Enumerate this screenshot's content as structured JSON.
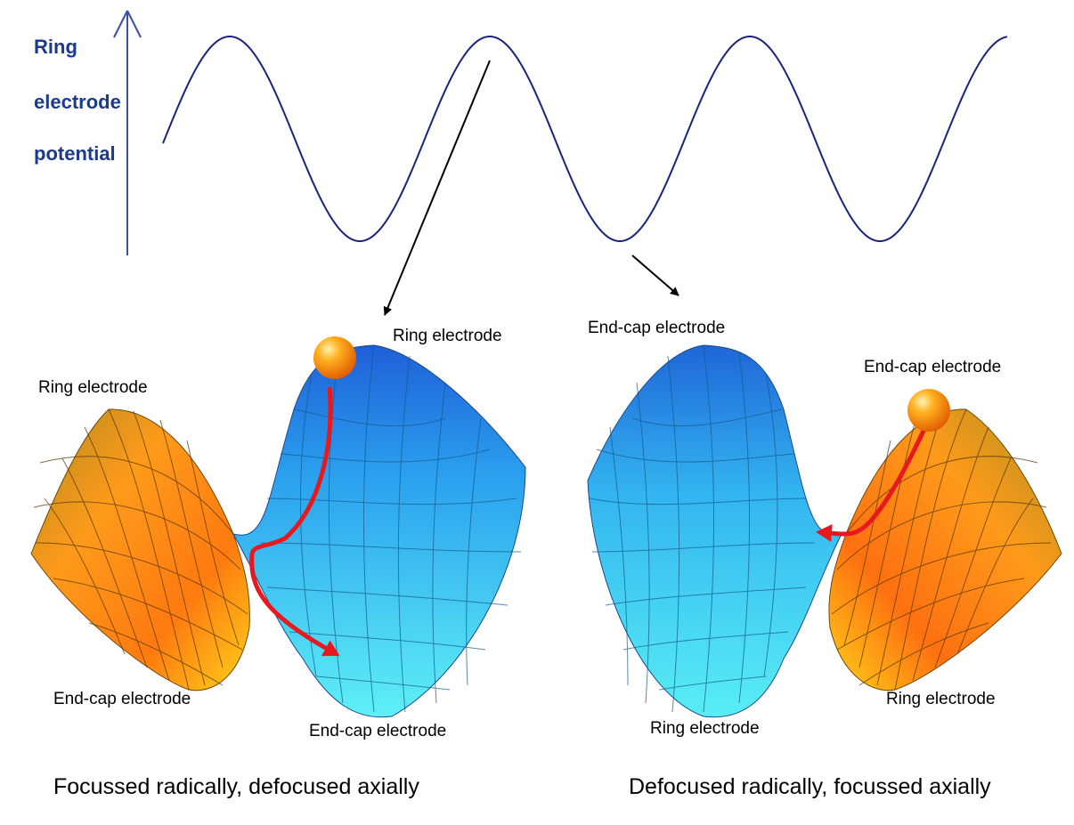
{
  "axis": {
    "label_line1": "Ring",
    "label_line2": "electrode",
    "label_line3": "potential"
  },
  "left_panel": {
    "top_right_label": "Ring electrode",
    "top_left_label": "Ring electrode",
    "bottom_left_label": "End-cap electrode",
    "bottom_right_label": "End-cap electrode",
    "caption": "Focussed radically, defocused axially"
  },
  "right_panel": {
    "top_left_label": "End-cap electrode",
    "top_right_label": "End-cap electrode",
    "bottom_left_label": "Ring electrode",
    "bottom_right_label": "Ring electrode",
    "caption": "Defocused radically, focussed axially"
  },
  "colors": {
    "wave": "#1a237e",
    "axis": "#3b4fa8",
    "trajectory": "#e8191e",
    "blue_surface": "#3fd7f0",
    "orange_surface": "#f0a020"
  }
}
